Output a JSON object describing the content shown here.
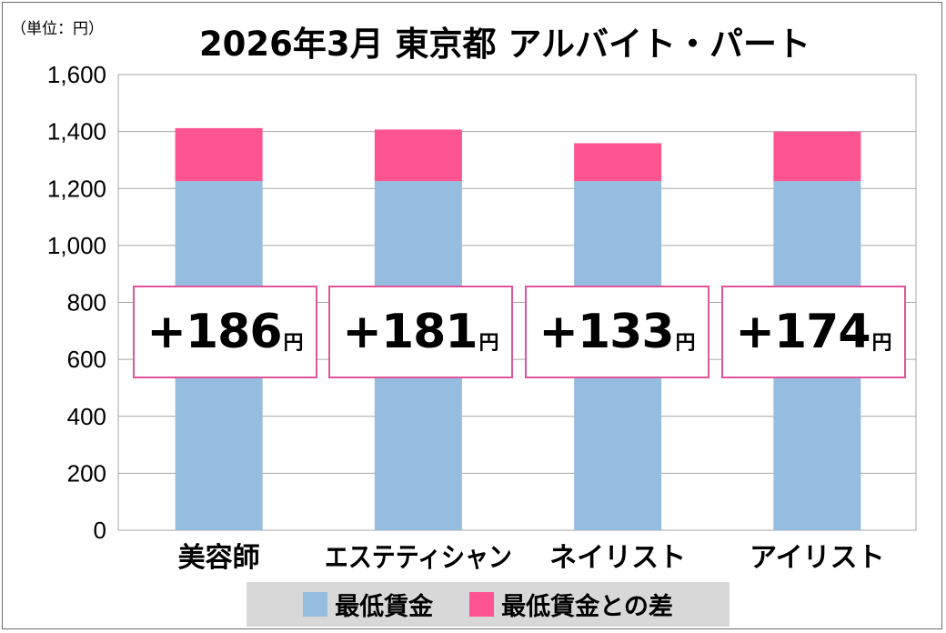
{
  "unit_label": "（単位：円）",
  "title": "2026年3月 東京都 アルバイト・パート",
  "chart_data": {
    "type": "bar",
    "stacked": true,
    "title": "2026年3月 東京都 アルバイト・パート",
    "categories": [
      "美容師",
      "エステティシャン",
      "ネイリスト",
      "アイリスト"
    ],
    "series": [
      {
        "name": "最低賃金",
        "values": [
          1226,
          1226,
          1226,
          1226
        ],
        "color": "#95bddf"
      },
      {
        "name": "最低賃金との差",
        "values": [
          186,
          181,
          133,
          174
        ],
        "color": "#fe5590"
      }
    ],
    "yticks": [
      "0",
      "200",
      "400",
      "600",
      "800",
      "1,000",
      "1,200",
      "1,400",
      "1,600"
    ],
    "ylim": [
      0,
      1600
    ],
    "grid": true,
    "legend_position": "bottom",
    "annotations": [
      "+186",
      "+181",
      "+133",
      "+174"
    ],
    "annotation_unit": "円"
  }
}
